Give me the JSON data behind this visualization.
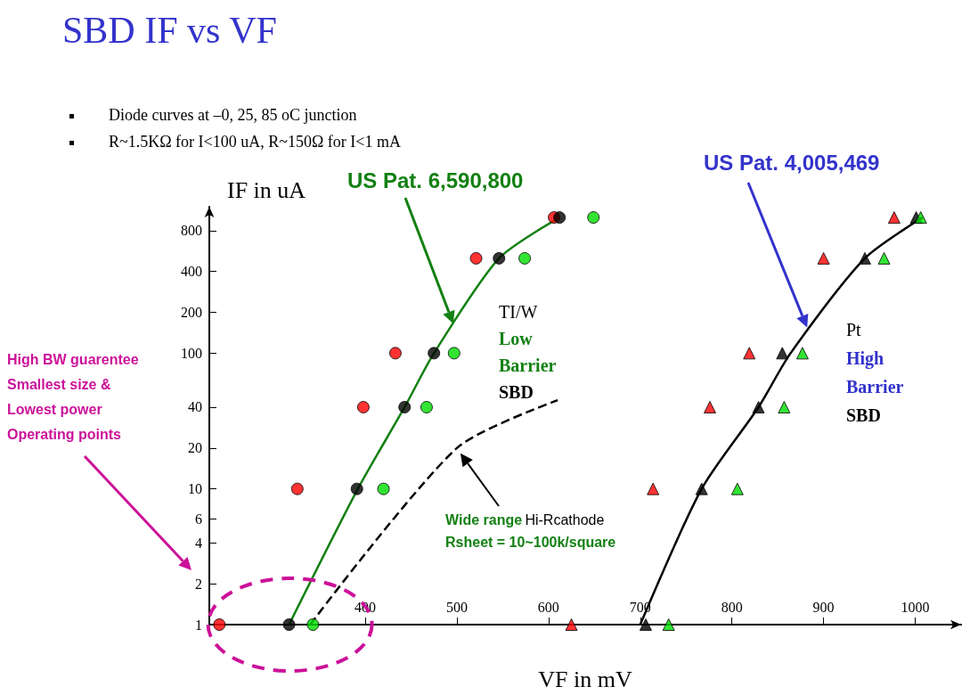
{
  "chart_data": {
    "type": "scatter",
    "title": "SBD IF vs VF",
    "xlabel": "VF in mV",
    "ylabel": "IF in uA",
    "annotations": [
      "Diode curves at –0, 25, 85 oC junction",
      "R~1.5KΩ for I<100 uA, R~150Ω for I<1 mA",
      "US Pat. 6,590,800",
      "US Pat. 4,005,469",
      "TI/W",
      "Low",
      "Barrier",
      "SBD",
      "Pt",
      "High",
      "Barrier",
      "SBD",
      "High BW guarentee",
      "Smallest size &",
      "Lowest power",
      "Operating points",
      "Wide range Hi-Rcathode",
      "Rsheet = 10~100k/square"
    ],
    "log": "y",
    "xlim": [
      230,
      1050
    ],
    "ylim": [
      1,
      1200
    ],
    "xticks": [
      400,
      500,
      600,
      700,
      800,
      900,
      1000
    ],
    "yticks": [
      1,
      2,
      4,
      6,
      10,
      20,
      40,
      100,
      200,
      400,
      800
    ],
    "grid": false,
    "series": [
      {
        "marker": "circle",
        "color": "#ff0000",
        "x": [
          241,
          326,
          398,
          433,
          521,
          606
        ],
        "values": [
          1,
          10,
          40,
          100,
          500,
          1000
        ]
      },
      {
        "marker": "circle",
        "color": "#000000",
        "x": [
          317,
          391,
          443,
          475,
          546,
          612
        ],
        "values": [
          1,
          10,
          40,
          100,
          500,
          1000
        ]
      },
      {
        "marker": "circle",
        "color": "#00dd00",
        "x": [
          343,
          420,
          467,
          497,
          574,
          649
        ],
        "values": [
          1,
          10,
          40,
          100,
          500,
          1000
        ]
      },
      {
        "marker": "triangle",
        "color": "#ff0000",
        "x": [
          625,
          714,
          776,
          819,
          900,
          977
        ],
        "values": [
          1,
          10,
          40,
          100,
          500,
          1000
        ]
      },
      {
        "marker": "triangle",
        "color": "#000000",
        "x": [
          706,
          767,
          829,
          855,
          945,
          1001
        ],
        "values": [
          1,
          10,
          40,
          100,
          500,
          1000
        ]
      },
      {
        "marker": "triangle",
        "color": "#00dd00",
        "x": [
          731,
          806,
          857,
          877,
          966,
          1006
        ],
        "values": [
          1,
          10,
          40,
          100,
          500,
          1000
        ]
      },
      {
        "type": "line",
        "marker": "none",
        "line_style": "solid",
        "color": "#138013",
        "x": [
          317,
          392,
          443,
          475,
          546,
          612
        ],
        "values": [
          1,
          10,
          40,
          100,
          500,
          1000
        ]
      },
      {
        "type": "line",
        "marker": "none",
        "line_style": "dashed",
        "color": "#000000",
        "x": [
          340,
          500,
          610
        ],
        "values": [
          1,
          20,
          45
        ]
      },
      {
        "type": "line",
        "marker": "none",
        "line_style": "solid",
        "color": "#000000",
        "x": [
          700,
          767,
          829,
          864,
          945,
          1008
        ],
        "values": [
          1,
          10,
          40,
          100,
          500,
          1000
        ]
      }
    ]
  }
}
